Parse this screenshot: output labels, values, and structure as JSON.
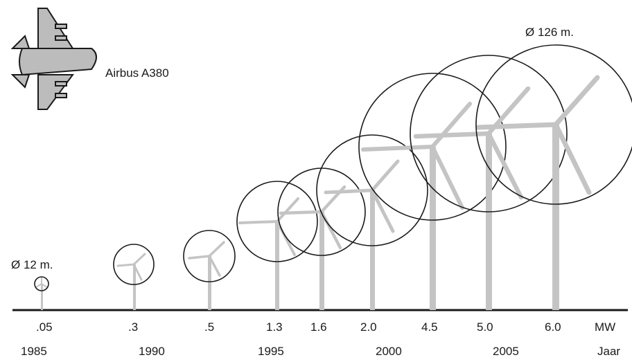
{
  "airplane": {
    "label": "Airbus A380",
    "icon": "airplane-icon"
  },
  "annotations": {
    "smallest_diameter": "Ø 12 m.",
    "largest_diameter": "Ø 126 m."
  },
  "units": {
    "power": "MW",
    "year": "Jaar"
  },
  "turbines": [
    {
      "mw": ".05"
    },
    {
      "mw": ".3"
    },
    {
      "mw": ".5"
    },
    {
      "mw": "1.3"
    },
    {
      "mw": "1.6"
    },
    {
      "mw": "2.0"
    },
    {
      "mw": "4.5"
    },
    {
      "mw": "5.0"
    },
    {
      "mw": "6.0"
    }
  ],
  "years": [
    "1985",
    "1990",
    "1995",
    "2000",
    "2005"
  ],
  "colors": {
    "outline": "#1a1a1a",
    "turbine": "#c4c4c4",
    "airplane_fill": "#bcbcbc"
  }
}
